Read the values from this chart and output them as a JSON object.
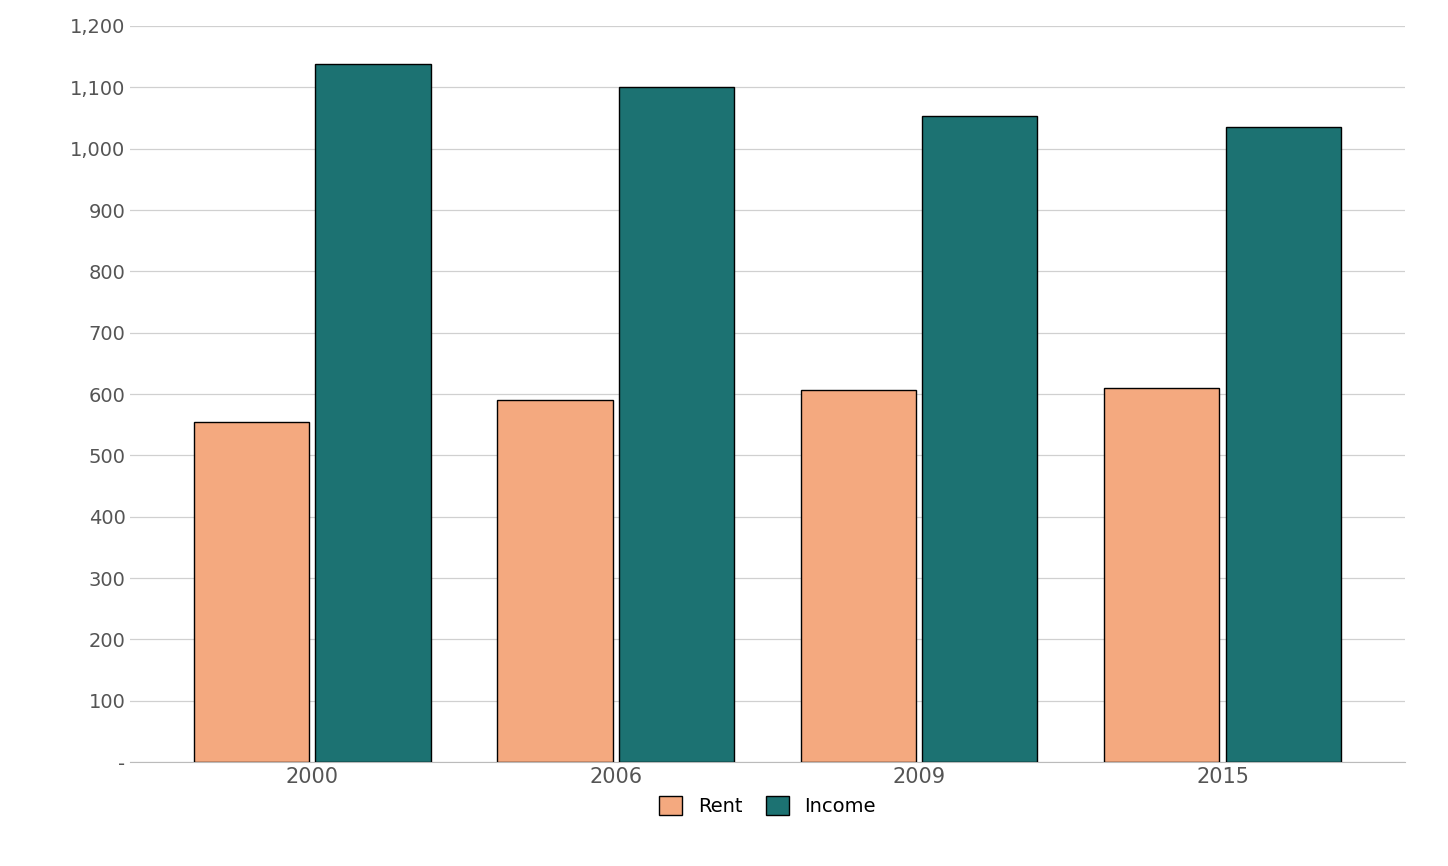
{
  "years": [
    "2000",
    "2006",
    "2009",
    "2015"
  ],
  "rent_values": [
    554,
    590,
    607,
    610
  ],
  "income_values": [
    1138,
    1101,
    1054,
    1036
  ],
  "rent_color": "#F4A97F",
  "income_color": "#1C7272",
  "bar_edge_color": "#000000",
  "bar_width": 0.38,
  "group_positions": [
    0,
    1,
    2,
    3
  ],
  "ylim": [
    0,
    1200
  ],
  "yticks": [
    0,
    100,
    200,
    300,
    400,
    500,
    600,
    700,
    800,
    900,
    1000,
    1100,
    1200
  ],
  "ytick_labels": [
    "-",
    "100",
    "200",
    "300",
    "400",
    "500",
    "600",
    "700",
    "800",
    "900",
    "1,000",
    "1,100",
    "1,200"
  ],
  "background_color": "#ffffff",
  "grid_color": "#d0d0d0",
  "legend_rent_label": "Rent",
  "legend_income_label": "Income",
  "tick_fontsize": 14,
  "legend_fontsize": 14,
  "xtick_fontsize": 15
}
